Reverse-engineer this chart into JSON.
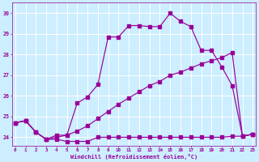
{
  "background_color": "#cceeff",
  "grid_color": "#ffffff",
  "line_color": "#990099",
  "xlabel": "Windchill (Refroidissement éolien,°C)",
  "xlabel_color": "#990099",
  "ylabel_ticks": [
    24,
    25,
    26,
    27,
    28,
    29,
    30
  ],
  "xlabel_ticks": [
    0,
    1,
    2,
    3,
    4,
    5,
    6,
    7,
    8,
    9,
    10,
    11,
    12,
    13,
    14,
    15,
    16,
    17,
    18,
    19,
    20,
    21,
    22,
    23
  ],
  "ylim": [
    23.6,
    30.5
  ],
  "xlim": [
    -0.3,
    23.3
  ],
  "series1_x": [
    0,
    1,
    2,
    3,
    4,
    5,
    6,
    7,
    8,
    9,
    10,
    11,
    12,
    13,
    14,
    15,
    16,
    17,
    18,
    19,
    20,
    21,
    22,
    23
  ],
  "series1_y": [
    24.7,
    24.8,
    24.25,
    23.9,
    23.9,
    23.8,
    23.8,
    23.8,
    24.0,
    24.0,
    24.0,
    24.0,
    24.0,
    24.0,
    24.0,
    24.0,
    24.0,
    24.0,
    24.0,
    24.0,
    24.0,
    24.05,
    24.05,
    24.15
  ],
  "series2_x": [
    0,
    1,
    2,
    3,
    4,
    5,
    6,
    7,
    8,
    9,
    10,
    11,
    12,
    13,
    14,
    15,
    16,
    17,
    18,
    19,
    20,
    21,
    22,
    23
  ],
  "series2_y": [
    24.7,
    24.8,
    24.25,
    23.9,
    24.0,
    24.1,
    24.3,
    24.55,
    24.9,
    25.25,
    25.6,
    25.9,
    26.2,
    26.5,
    26.7,
    27.0,
    27.15,
    27.35,
    27.55,
    27.7,
    27.85,
    28.1,
    24.05,
    24.15
  ],
  "series3_x": [
    0,
    1,
    2,
    3,
    4,
    5,
    6,
    7,
    8,
    9,
    10,
    11,
    12,
    13,
    14,
    15,
    16,
    17,
    18,
    19,
    20,
    21,
    22,
    23
  ],
  "series3_y": [
    24.7,
    24.8,
    24.25,
    23.9,
    24.1,
    24.1,
    25.65,
    25.95,
    26.55,
    28.85,
    28.85,
    29.4,
    29.4,
    29.35,
    29.35,
    30.0,
    29.6,
    29.35,
    28.2,
    28.2,
    27.4,
    26.5,
    24.05,
    24.15
  ]
}
